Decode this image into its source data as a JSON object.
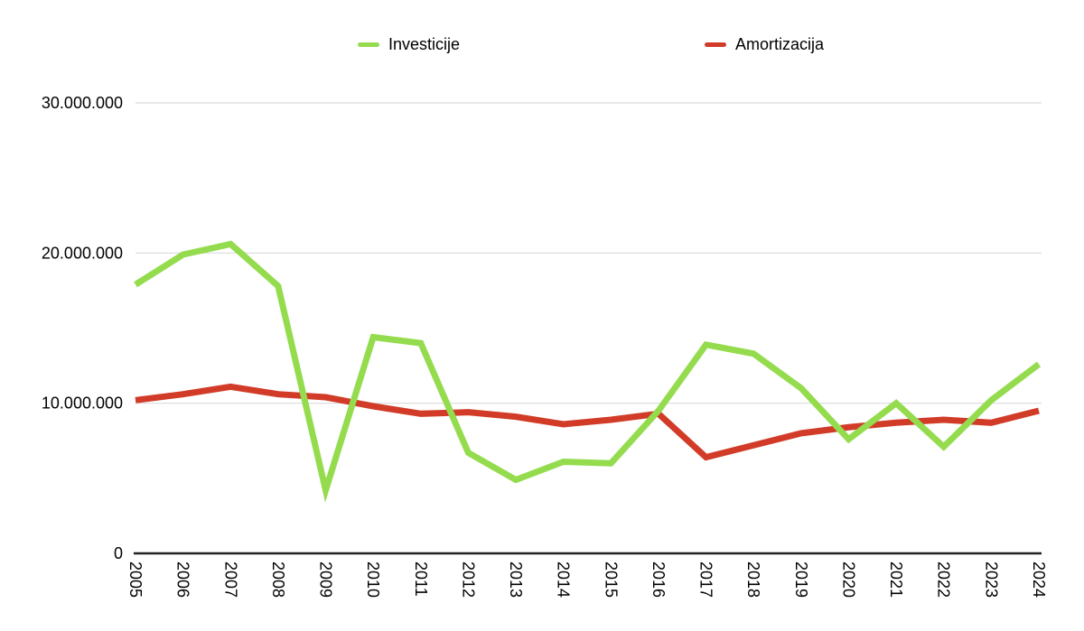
{
  "chart_data": {
    "type": "line",
    "title": "",
    "xlabel": "",
    "ylabel": "",
    "categories": [
      "2005",
      "2006",
      "2007",
      "2008",
      "2009",
      "2010",
      "2011",
      "2012",
      "2013",
      "2014",
      "2015",
      "2016",
      "2017",
      "2018",
      "2019",
      "2020",
      "2021",
      "2022",
      "2023",
      "2024"
    ],
    "series": [
      {
        "name": "Investicije",
        "color": "#94DC4E",
        "values": [
          17900000,
          19900000,
          20600000,
          17800000,
          4200000,
          14400000,
          14000000,
          6700000,
          4900000,
          6100000,
          6000000,
          9500000,
          13900000,
          13300000,
          11000000,
          7600000,
          10000000,
          7100000,
          10200000,
          12600000
        ]
      },
      {
        "name": "Amortizacija",
        "color": "#D13B27",
        "values": [
          10200000,
          10600000,
          11100000,
          10600000,
          10400000,
          9800000,
          9300000,
          9400000,
          9100000,
          8600000,
          8900000,
          9300000,
          6400000,
          7200000,
          8000000,
          8400000,
          8700000,
          8900000,
          8700000,
          9500000
        ]
      }
    ],
    "ylim": [
      0,
      30000000
    ],
    "y_ticks": [
      0,
      10000000,
      20000000,
      30000000
    ],
    "y_tick_labels": [
      "0",
      "10.000.000",
      "20.000.000",
      "30.000.000"
    ],
    "grid": true,
    "legend_position": "top",
    "gridline_color": "#D9D9D9",
    "axis_color": "#212121",
    "label_color": "#000000"
  }
}
